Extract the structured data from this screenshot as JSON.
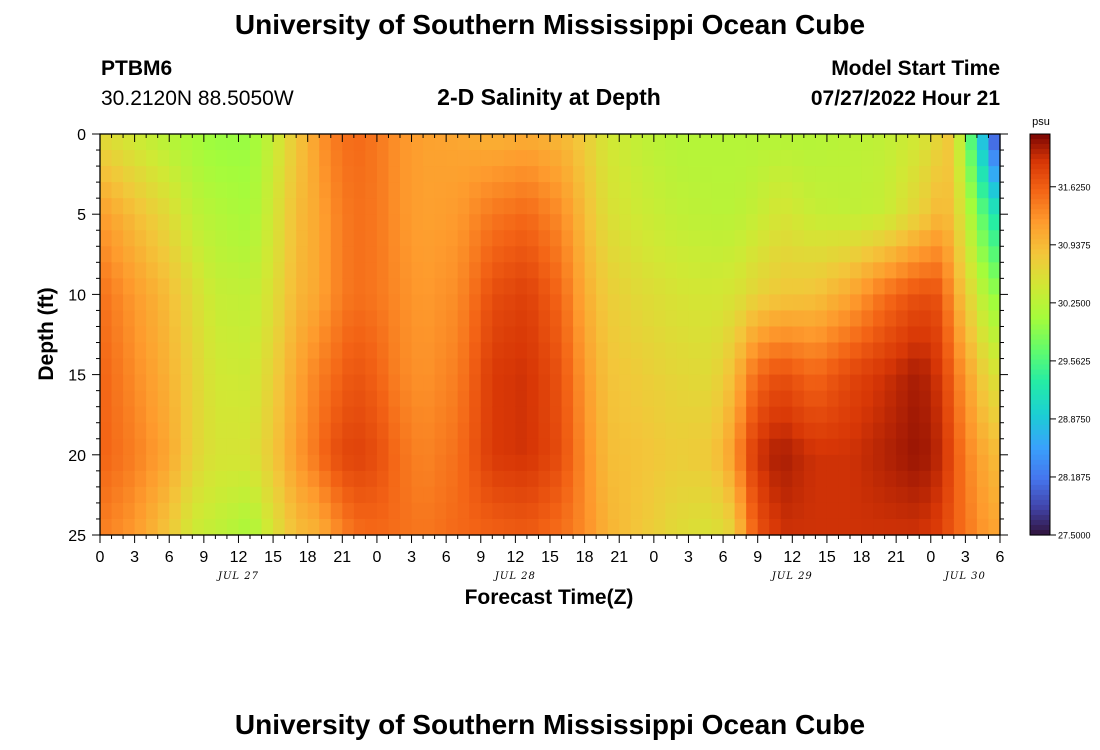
{
  "page": {
    "title": "University of Southern Mississippi Ocean Cube",
    "station_id": "PTBM6",
    "coords": "30.2120N  88.5050W",
    "plot_title": "2-D Salinity at Depth",
    "model_label": "Model Start Time",
    "model_time": "07/27/2022 Hour 21",
    "bottom_title": "University of Southern Mississippi Ocean Cube"
  },
  "chart_data": {
    "type": "heatmap",
    "title": "2-D Salinity at Depth",
    "xlabel": "Forecast Time(Z)",
    "ylabel": "Depth (ft)",
    "x_tick_labels": [
      "0",
      "3",
      "6",
      "9",
      "12",
      "15",
      "18",
      "21",
      "0",
      "3",
      "6",
      "9",
      "12",
      "15",
      "18",
      "21",
      "0",
      "3",
      "6",
      "9",
      "12",
      "15",
      "18",
      "21",
      "0",
      "3",
      "6"
    ],
    "date_labels": [
      {
        "label": "JUL 27",
        "hour": 12
      },
      {
        "label": "JUL 28",
        "hour": 36
      },
      {
        "label": "JUL 29",
        "hour": 60
      },
      {
        "label": "JUL 30",
        "hour": 75
      }
    ],
    "xlim": [
      0,
      78
    ],
    "y_ticks": [
      0,
      5,
      10,
      15,
      20,
      25
    ],
    "ylim": [
      0,
      25
    ],
    "colorbar": {
      "unit": "psu",
      "range": [
        27.5,
        32.25
      ],
      "tick_labels": [
        "31.6250",
        "30.9375",
        "30.2500",
        "29.5625",
        "28.8750",
        "28.1875",
        "27.5000"
      ],
      "tick_values": [
        31.625,
        30.9375,
        30.25,
        29.5625,
        28.875,
        28.1875,
        27.5
      ]
    },
    "nx": 78,
    "ny": 25,
    "depths_ft": [
      0,
      5,
      10,
      15,
      20,
      25
    ],
    "salinity_profiles": [
      {
        "hour": 0,
        "values": [
          30.6,
          31.2,
          31.5,
          31.6,
          31.6,
          31.4
        ]
      },
      {
        "hour": 3,
        "values": [
          30.4,
          30.9,
          31.2,
          31.3,
          31.4,
          31.2
        ]
      },
      {
        "hour": 6,
        "values": [
          30.2,
          30.6,
          30.9,
          31.0,
          31.1,
          30.8
        ]
      },
      {
        "hour": 8,
        "values": [
          30.1,
          30.3,
          30.6,
          30.7,
          30.7,
          30.4
        ]
      },
      {
        "hour": 10,
        "values": [
          30.0,
          30.2,
          30.35,
          30.45,
          30.5,
          30.3
        ]
      },
      {
        "hour": 13,
        "values": [
          30.0,
          30.1,
          30.3,
          30.4,
          30.5,
          30.1
        ]
      },
      {
        "hour": 15,
        "values": [
          30.35,
          30.45,
          30.55,
          30.7,
          30.8,
          30.5
        ]
      },
      {
        "hour": 17,
        "values": [
          30.8,
          30.9,
          30.95,
          31.1,
          31.2,
          30.9
        ]
      },
      {
        "hour": 19,
        "values": [
          31.2,
          31.1,
          31.1,
          31.4,
          31.5,
          31.0
        ]
      },
      {
        "hour": 20,
        "values": [
          31.4,
          31.3,
          31.3,
          31.5,
          31.7,
          31.2
        ]
      },
      {
        "hour": 22,
        "values": [
          31.55,
          31.5,
          31.5,
          31.7,
          31.85,
          31.5
        ]
      },
      {
        "hour": 24,
        "values": [
          31.45,
          31.45,
          31.45,
          31.6,
          31.75,
          31.55
        ]
      },
      {
        "hour": 26,
        "values": [
          31.25,
          31.25,
          31.3,
          31.35,
          31.5,
          31.5
        ]
      },
      {
        "hour": 28,
        "values": [
          31.15,
          31.15,
          31.2,
          31.25,
          31.35,
          31.45
        ]
      },
      {
        "hour": 31,
        "values": [
          31.1,
          31.2,
          31.3,
          31.4,
          31.5,
          31.55
        ]
      },
      {
        "hour": 34,
        "values": [
          31.0,
          31.45,
          31.75,
          31.9,
          31.9,
          31.6
        ]
      },
      {
        "hour": 37,
        "values": [
          31.05,
          31.55,
          31.85,
          31.95,
          31.95,
          31.65
        ]
      },
      {
        "hour": 40,
        "values": [
          30.95,
          31.3,
          31.55,
          31.7,
          31.75,
          31.5
        ]
      },
      {
        "hour": 42,
        "values": [
          30.75,
          30.9,
          31.05,
          31.2,
          31.3,
          31.3
        ]
      },
      {
        "hour": 44,
        "values": [
          30.45,
          30.55,
          30.75,
          30.85,
          30.9,
          31.0
        ]
      },
      {
        "hour": 47,
        "values": [
          30.3,
          30.4,
          30.6,
          30.75,
          30.85,
          30.8
        ]
      },
      {
        "hour": 50,
        "values": [
          30.2,
          30.3,
          30.5,
          30.65,
          30.75,
          30.6
        ]
      },
      {
        "hour": 53,
        "values": [
          30.2,
          30.25,
          30.45,
          30.6,
          30.8,
          30.5
        ]
      },
      {
        "hour": 55,
        "values": [
          30.2,
          30.25,
          30.5,
          30.9,
          31.2,
          30.7
        ]
      },
      {
        "hour": 56,
        "values": [
          30.2,
          30.3,
          30.6,
          31.3,
          31.7,
          31.3
        ]
      },
      {
        "hour": 57,
        "values": [
          30.2,
          30.35,
          30.7,
          31.55,
          31.95,
          31.7
        ]
      },
      {
        "hour": 59,
        "values": [
          30.2,
          30.5,
          30.8,
          31.75,
          32.1,
          31.95
        ]
      },
      {
        "hour": 62,
        "values": [
          30.2,
          30.35,
          30.85,
          31.55,
          31.95,
          31.95
        ]
      },
      {
        "hour": 65,
        "values": [
          30.25,
          30.3,
          31.1,
          31.8,
          31.95,
          31.95
        ]
      },
      {
        "hour": 68,
        "values": [
          30.3,
          30.35,
          31.5,
          31.95,
          32.05,
          31.95
        ]
      },
      {
        "hour": 71,
        "values": [
          30.45,
          30.7,
          31.75,
          32.1,
          32.15,
          31.95
        ]
      },
      {
        "hour": 73,
        "values": [
          30.7,
          31.0,
          31.7,
          31.9,
          32.0,
          31.85
        ]
      },
      {
        "hour": 74,
        "values": [
          30.85,
          30.8,
          31.1,
          31.5,
          31.7,
          31.6
        ]
      },
      {
        "hour": 75,
        "values": [
          29.8,
          30.35,
          30.8,
          31.2,
          31.4,
          31.5
        ]
      },
      {
        "hour": 76,
        "values": [
          29.3,
          29.9,
          30.4,
          30.9,
          31.2,
          31.3
        ]
      },
      {
        "hour": 77,
        "values": [
          28.2,
          29.4,
          30.1,
          30.6,
          31.0,
          31.2
        ]
      },
      {
        "hour": 78,
        "values": [
          27.8,
          29.1,
          29.9,
          30.5,
          30.9,
          31.1
        ]
      }
    ]
  }
}
